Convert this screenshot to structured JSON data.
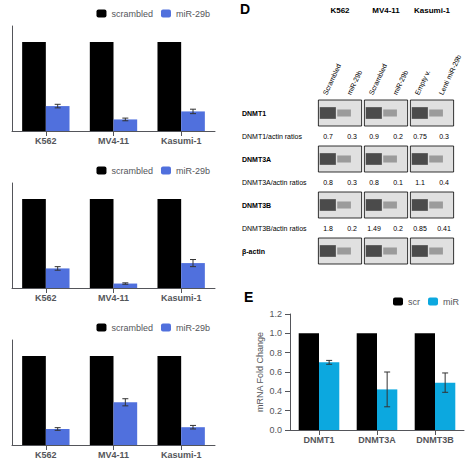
{
  "chart_data": [
    {
      "type": "bar",
      "categories": [
        "K562",
        "MV4-11",
        "Kasumi-1"
      ],
      "series": [
        {
          "name": "scrambled",
          "color": "#000000",
          "values": [
            1.0,
            1.0,
            1.0
          ]
        },
        {
          "name": "miR-29b",
          "values": [
            0.28,
            0.13,
            0.22
          ],
          "errors": [
            0.02,
            0.015,
            0.025
          ]
        }
      ],
      "ylim": [
        0,
        1.18
      ],
      "grid": false,
      "legend": "upper right",
      "tick_labels": "x"
    },
    {
      "type": "bar",
      "categories": [
        "K562",
        "MV4-11",
        "Kasumi-1"
      ],
      "series": [
        {
          "name": "scrambled",
          "color": "#000000",
          "values": [
            1.0,
            1.0,
            1.0
          ]
        },
        {
          "name": "miR-29b",
          "values": [
            0.22,
            0.05,
            0.28
          ],
          "errors": [
            0.02,
            0.008,
            0.04
          ]
        }
      ],
      "ylim": [
        0,
        1.18
      ],
      "grid": false,
      "legend": "upper right",
      "tick_labels": "x"
    },
    {
      "type": "bar",
      "categories": [
        "K562",
        "MV4-11",
        "Kasumi-1"
      ],
      "series": [
        {
          "name": "scrambled",
          "color": "#000000",
          "values": [
            1.0,
            1.0,
            1.0
          ]
        },
        {
          "name": "miR-29b",
          "values": [
            0.18,
            0.48,
            0.2
          ],
          "errors": [
            0.015,
            0.04,
            0.02
          ]
        }
      ],
      "ylim": [
        0,
        1.18
      ],
      "grid": false,
      "legend": "upper right",
      "tick_labels": "x"
    },
    {
      "type": "table",
      "title": "D",
      "columns": [
        "K562",
        "MV4-11",
        "Kasumi-1"
      ],
      "subcolumns": [
        [
          "Scrambled",
          "miR-29b"
        ],
        [
          "Scrambled",
          "miR-29b"
        ],
        [
          "Empty v.",
          "Lenti miR-29b"
        ]
      ],
      "rows": [
        {
          "label": "DNMT1"
        },
        {
          "label": "DNMT1/actin ratios",
          "values": [
            [
              0.7,
              0.3
            ],
            [
              0.9,
              0.2
            ],
            [
              0.75,
              0.3
            ]
          ]
        },
        {
          "label": "DNMT3A"
        },
        {
          "label": "DNMT3A/actin ratios",
          "values": [
            [
              0.8,
              0.3
            ],
            [
              0.8,
              0.1
            ],
            [
              1.1,
              0.4
            ]
          ]
        },
        {
          "label": "DNMT3B"
        },
        {
          "label": "DNMT3B/actin ratios",
          "values": [
            [
              1.8,
              0.2
            ],
            [
              1.49,
              0.2
            ],
            [
              0.85,
              0.41
            ]
          ]
        },
        {
          "label": "β-actin"
        }
      ]
    },
    {
      "type": "bar",
      "title": "E",
      "categories": [
        "DNMT1",
        "DNMT3A",
        "DNMT3B"
      ],
      "series": [
        {
          "name": "scr",
          "color": "#000000",
          "values": [
            1.0,
            1.0,
            1.0
          ]
        },
        {
          "name": "miR",
          "values": [
            0.7,
            0.42,
            0.49
          ],
          "errors": [
            0.02,
            0.18,
            0.1
          ]
        }
      ],
      "ylabel": "mRNA Fold Change",
      "ylim": [
        0,
        1.2
      ],
      "yticks": [
        {
          "value": 0,
          "label": "0.0"
        },
        0.2,
        0.4,
        0.6,
        0.8,
        {
          "value": 1.0,
          "label": "1.0"
        },
        1.2
      ],
      "grid": false,
      "legend": "upper right"
    }
  ]
}
